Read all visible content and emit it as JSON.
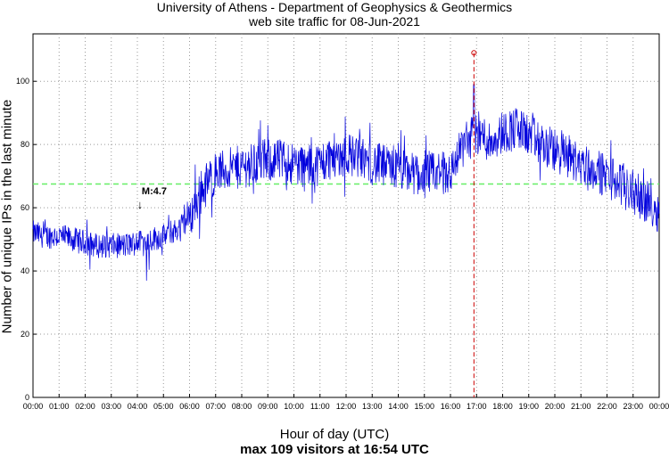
{
  "chart_data": {
    "type": "line",
    "title": "University of Athens - Department of Geophysics & Geothermics",
    "subtitle": "web site traffic for 08-Jun-2021",
    "xlabel": "Hour of day (UTC)",
    "ylabel": "Number of unique IPs in the last minute",
    "footer": "max 109 visitors at 16:54 UTC",
    "xlim": [
      0,
      24
    ],
    "ylim": [
      0,
      115
    ],
    "x_ticks": [
      "00:00",
      "01:00",
      "02:00",
      "03:00",
      "04:00",
      "05:00",
      "06:00",
      "07:00",
      "08:00",
      "09:00",
      "10:00",
      "11:00",
      "12:00",
      "13:00",
      "14:00",
      "15:00",
      "16:00",
      "17:00",
      "18:00",
      "19:00",
      "20:00",
      "21:00",
      "22:00",
      "23:00",
      "00:00"
    ],
    "y_ticks": [
      0,
      20,
      40,
      60,
      80,
      100
    ],
    "grid": true,
    "mean_line": 67.5,
    "max_marker": {
      "x": 16.9,
      "y": 109
    },
    "earthquake": {
      "label": "M:4.7",
      "x": 4.1
    },
    "series": [
      {
        "color": "#0000dd",
        "x": [
          0,
          0.5,
          1,
          1.5,
          2,
          2.5,
          3,
          3.5,
          4,
          4.5,
          5,
          5.5,
          6,
          6.5,
          7,
          7.5,
          8,
          8.5,
          9,
          9.5,
          10,
          10.5,
          11,
          11.5,
          12,
          12.5,
          13,
          13.5,
          14,
          14.5,
          15,
          15.5,
          16,
          16.5,
          17,
          17.5,
          18,
          18.5,
          19,
          19.5,
          20,
          20.5,
          21,
          21.5,
          22,
          22.5,
          23,
          23.5,
          24
        ],
        "y": [
          52,
          51,
          51,
          50,
          49,
          48,
          48,
          48,
          49,
          50,
          51,
          53,
          57,
          66,
          71,
          72,
          73,
          74,
          75,
          75,
          74,
          73,
          74,
          76,
          77,
          76,
          74,
          73,
          72,
          71,
          70,
          71,
          71,
          80,
          84,
          81,
          84,
          85,
          83,
          80,
          78,
          76,
          74,
          72,
          70,
          68,
          65,
          62,
          59
        ]
      }
    ],
    "colors": {
      "series": "#0000dd",
      "mean_line": "#66ee66",
      "max_marker": "#cc0000",
      "grid": "#999999"
    }
  }
}
